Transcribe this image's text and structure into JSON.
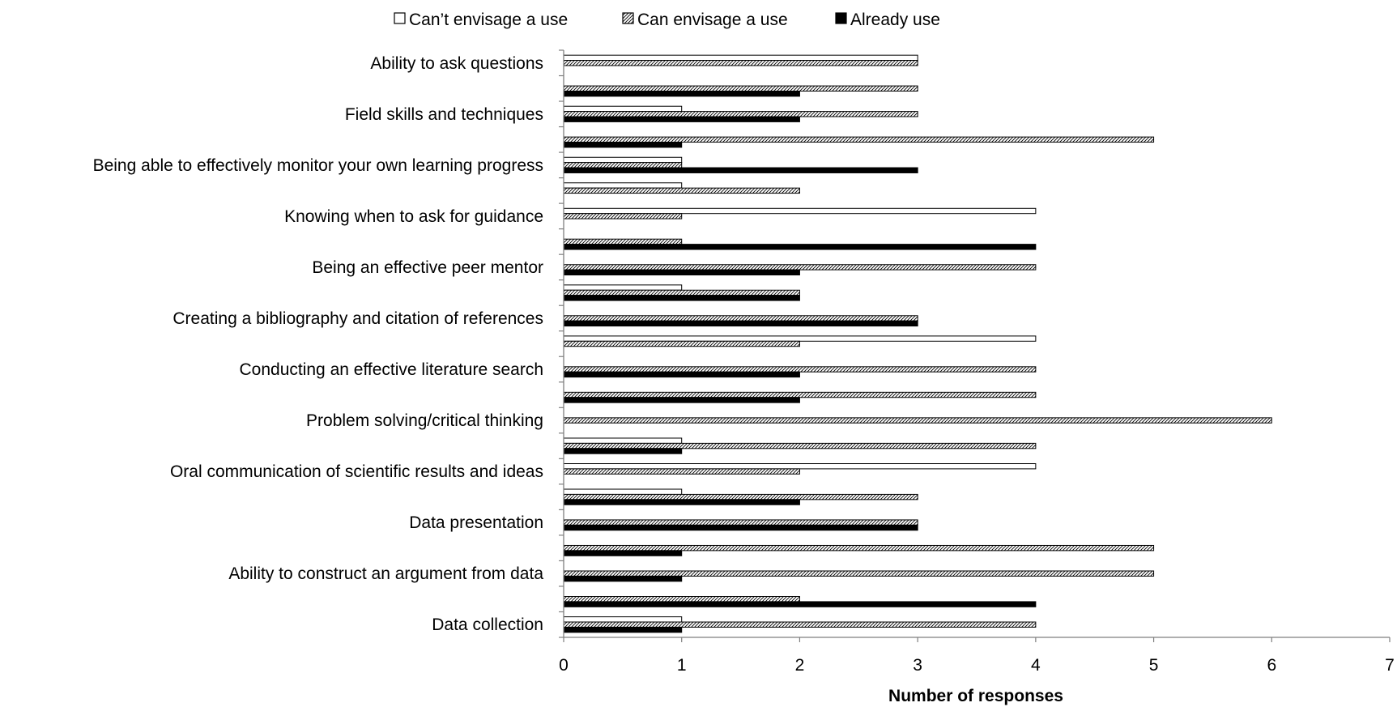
{
  "chart_data": {
    "type": "bar",
    "orientation": "horizontal",
    "title": "",
    "xlabel": "Number of responses",
    "ylabel": "",
    "xlim": [
      0,
      7
    ],
    "xticks": [
      "0",
      "1",
      "2",
      "3",
      "4",
      "5",
      "6",
      "7"
    ],
    "legend": {
      "placement": "top",
      "entries": [
        "Can’t envisage a use",
        "Can envisage a use",
        "Already use"
      ]
    },
    "series_styles": [
      {
        "fill": "#ffffff",
        "pattern": "none",
        "stroke": "#000000"
      },
      {
        "fill": "#ffffff",
        "pattern": "diagonal-hatch",
        "stroke": "#000000"
      },
      {
        "fill": "#000000",
        "pattern": "none",
        "stroke": "#000000"
      }
    ],
    "grid": false,
    "category_labels": [
      "Ability to ask questions",
      "Field skills and techniques",
      "Being able to effectively monitor your own learning progress",
      "Knowing when to ask for guidance",
      "Being an effective peer mentor",
      "Creating a bibliography and citation of references",
      "Conducting an effective literature search",
      "Problem solving/critical thinking",
      "Oral communication of scientific results and ideas",
      "Data presentation",
      "Ability to construct an argument from data",
      "Data collection"
    ],
    "category_label_rows": [
      0,
      2,
      4,
      6,
      8,
      10,
      12,
      14,
      16,
      18,
      20,
      22
    ],
    "rows": [
      [
        3,
        3,
        0
      ],
      [
        0,
        3,
        2
      ],
      [
        1,
        3,
        2
      ],
      [
        0,
        5,
        1
      ],
      [
        1,
        1,
        3
      ],
      [
        1,
        2,
        0
      ],
      [
        4,
        1,
        0
      ],
      [
        0,
        1,
        4
      ],
      [
        0,
        4,
        2
      ],
      [
        1,
        2,
        2
      ],
      [
        0,
        3,
        3
      ],
      [
        4,
        2,
        0
      ],
      [
        0,
        4,
        2
      ],
      [
        0,
        4,
        2
      ],
      [
        0,
        6,
        0
      ],
      [
        1,
        4,
        1
      ],
      [
        4,
        2,
        0
      ],
      [
        1,
        3,
        2
      ],
      [
        0,
        3,
        3
      ],
      [
        0,
        5,
        1
      ],
      [
        0,
        5,
        1
      ],
      [
        0,
        2,
        4
      ],
      [
        1,
        4,
        1
      ]
    ]
  }
}
